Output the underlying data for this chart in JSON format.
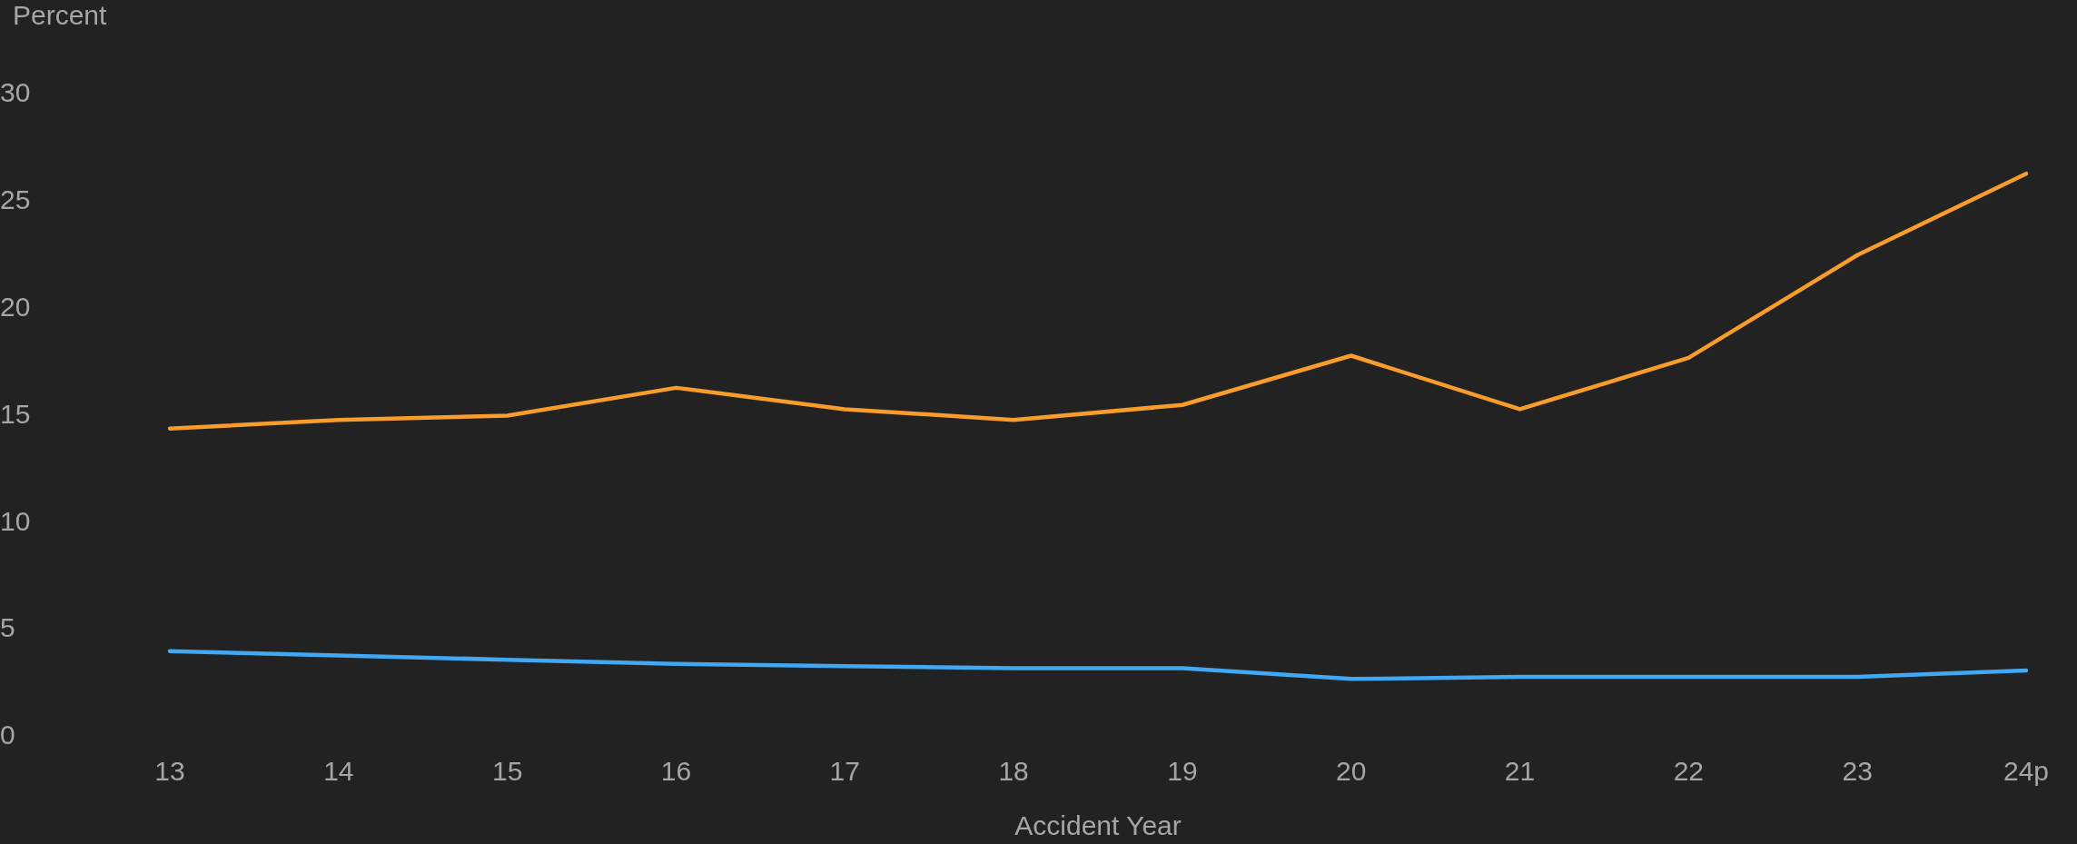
{
  "chart_data": {
    "type": "line",
    "ylabel": "Percent",
    "xlabel": "Accident Year",
    "categories": [
      "13",
      "14",
      "15",
      "16",
      "17",
      "18",
      "19",
      "20",
      "21",
      "22",
      "23",
      "24p"
    ],
    "series": [
      {
        "color": "#f89c2c",
        "values": [
          14.4,
          14.8,
          15.0,
          16.3,
          15.3,
          14.8,
          15.5,
          17.8,
          15.3,
          17.7,
          22.5,
          26.3
        ]
      },
      {
        "color": "#42a8f4",
        "values": [
          4.0,
          3.8,
          3.6,
          3.4,
          3.3,
          3.2,
          3.2,
          2.7,
          2.8,
          2.8,
          2.8,
          3.1
        ]
      }
    ],
    "ylim": [
      0,
      30
    ],
    "yticks": [
      0,
      5,
      10,
      15,
      20,
      25,
      30
    ],
    "grid": false,
    "legend": false,
    "marker": "none",
    "line_style": "solid"
  }
}
